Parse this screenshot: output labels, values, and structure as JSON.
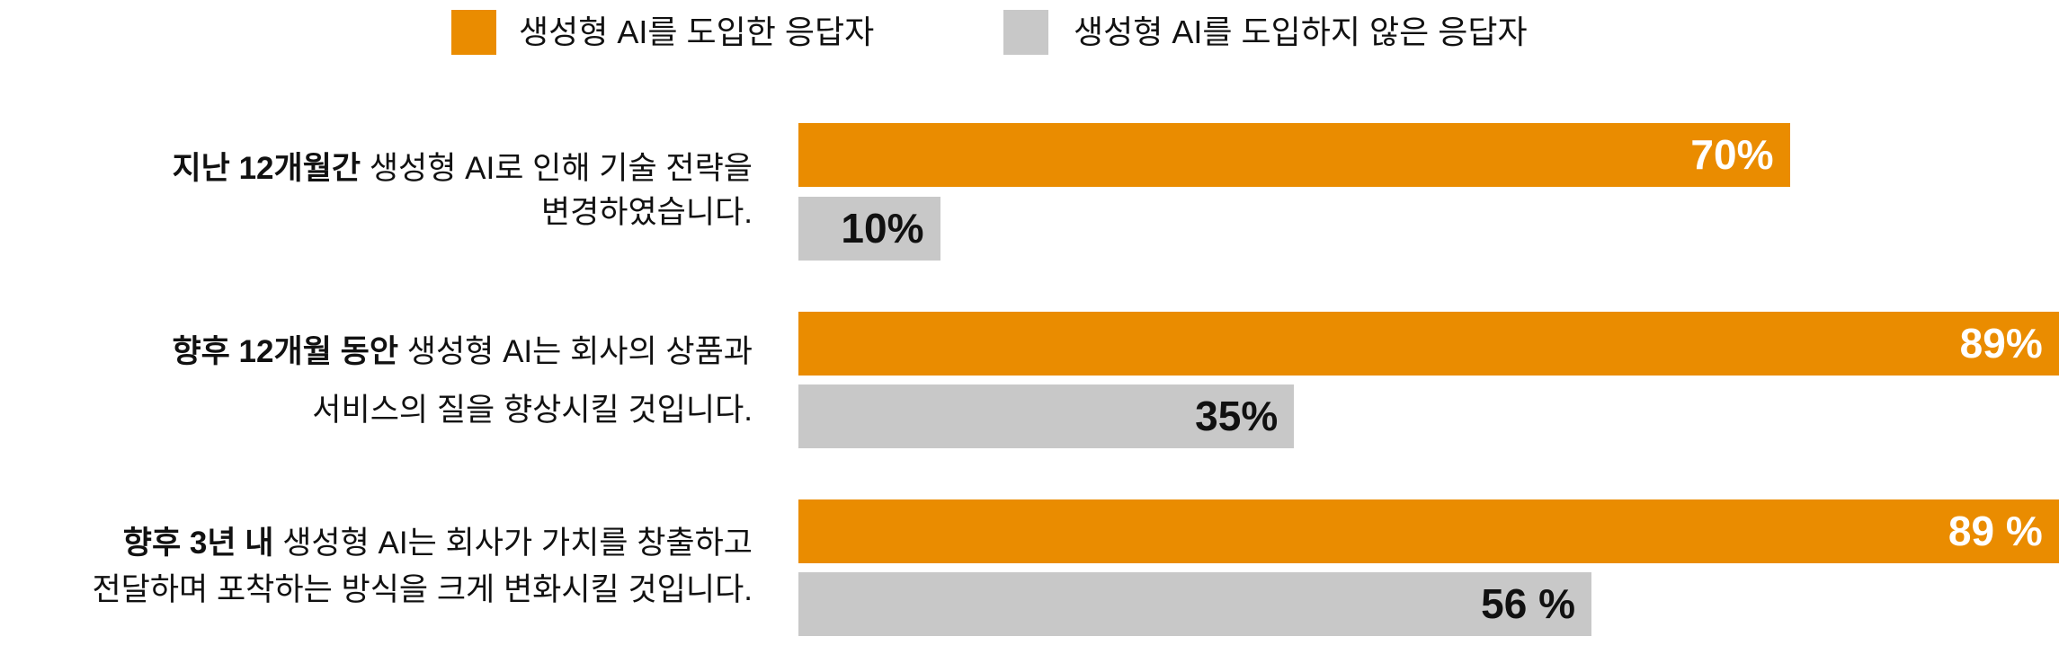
{
  "colors": {
    "adopted": "#EA8C00",
    "not_adopted": "#C8C8C8"
  },
  "chart_data": {
    "type": "bar",
    "orientation": "horizontal",
    "legend_placement": "top",
    "xlim": [
      0,
      89
    ],
    "categories": [
      {
        "bold": "지난 12개월간",
        "rest": " 생성형 AI로 인해 기술 전략을",
        "line2": "변경하였습니다."
      },
      {
        "bold": "향후 12개월 동안",
        "rest": " 생성형 AI는 회사의 상품과",
        "line2": "서비스의 질을 향상시킬 것입니다."
      },
      {
        "bold": "향후 3년 내",
        "rest": " 생성형 AI는 회사가 가치를 창출하고",
        "line2": "전달하며 포착하는 방식을 크게 변화시킬 것입니다."
      }
    ],
    "series": [
      {
        "name": "생성형 AI를 도입한 응답자",
        "values": [
          70,
          89,
          89
        ],
        "labels": [
          "70%",
          "89%",
          "89 %"
        ]
      },
      {
        "name": "생성형 AI를 도입하지 않은 응답자",
        "values": [
          10,
          35,
          56
        ],
        "labels": [
          "10%",
          "35%",
          "56 %"
        ]
      }
    ]
  }
}
